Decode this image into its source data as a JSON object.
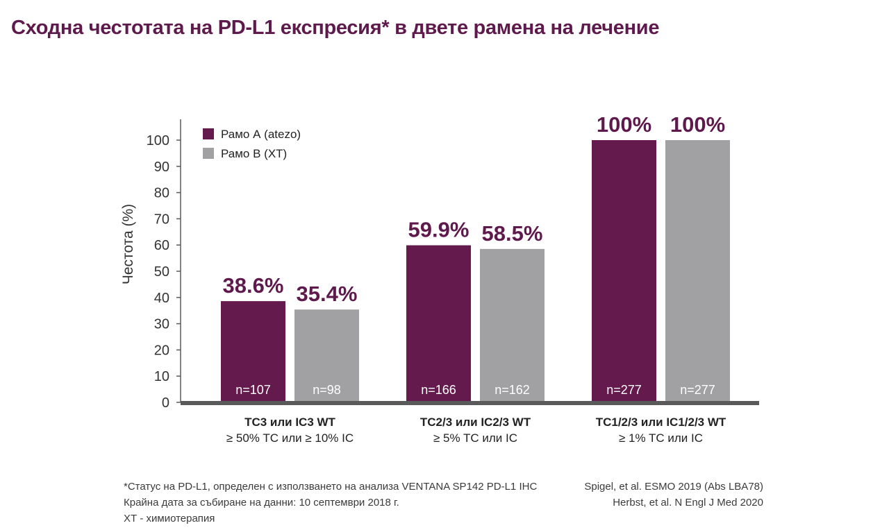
{
  "title": "Сходна честотата на PD-L1 експресия* в двете рамена на лечение",
  "chart_data": {
    "type": "bar",
    "ylabel": "Честота (%)",
    "ylim": [
      0,
      100
    ],
    "yticks": [
      0,
      10,
      20,
      30,
      40,
      50,
      60,
      70,
      80,
      90,
      100
    ],
    "categories": [
      {
        "label": "TC3 или IC3 WT",
        "sublabel": "≥ 50% TC или ≥ 10% IC"
      },
      {
        "label": "TC2/3 или IC2/3 WT",
        "sublabel": "≥ 5% TC или IC"
      },
      {
        "label": "TC1/2/3 или IC1/2/3 WT",
        "sublabel": "≥ 1% TC или IC"
      }
    ],
    "series": [
      {
        "name": "Рамо А (atezo)",
        "color": "#651a4e",
        "values": [
          38.6,
          59.9,
          100
        ],
        "value_labels": [
          "38.6%",
          "59.9%",
          "100%"
        ],
        "n_labels": [
          "n=107",
          "n=166",
          "n=277"
        ]
      },
      {
        "name": "Рамо В (ХТ)",
        "color": "#a1a1a3",
        "values": [
          35.4,
          58.5,
          100
        ],
        "value_labels": [
          "35.4%",
          "58.5%",
          "100%"
        ],
        "n_labels": [
          "n=98",
          "n=162",
          "n=277"
        ]
      }
    ],
    "value_label_color": "#5e1a4c",
    "axis_color": "#5a5a5a",
    "legend_position": "top-left",
    "grid": false
  },
  "footnotes": {
    "left": [
      "*Статус на PD-L1, определен с използването на анализа VENTANA SP142 PD-L1 IHC",
      "Крайна дата за събиране на данни: 10 септември 2018 г.",
      "ХТ - химиотерапия"
    ],
    "right": [
      "Spigel, et al. ESMO 2019 (Abs LBA78)",
      "Herbst, et al. N Engl J Med 2020"
    ]
  }
}
